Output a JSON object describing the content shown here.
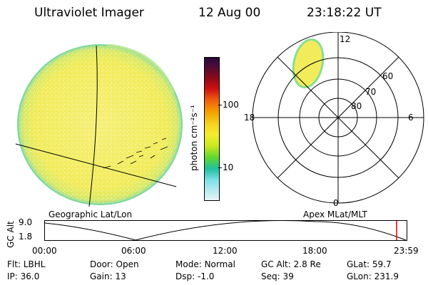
{
  "header": {
    "title": "Ultraviolet Imager",
    "date": "12 Aug 00",
    "time": "23:18:22 UT"
  },
  "colorbar": {
    "label": "photon cm⁻²s⁻¹",
    "ticks": [
      "100",
      "10"
    ]
  },
  "polar_plot": {
    "mlt_labels": [
      "12",
      "18",
      "6",
      "0"
    ],
    "lat_labels": [
      "60",
      "70",
      "80"
    ]
  },
  "globe": {
    "label": "Geographic Lat/Lon"
  },
  "polar_caption": "Apex MLat/MLT",
  "timeline": {
    "axis_label": "GC Alt",
    "y_ticks": [
      "9.0",
      "1.8"
    ],
    "x_ticks": [
      "00:00",
      "06:00",
      "12:00",
      "18:00",
      "23:59"
    ]
  },
  "info": {
    "row1": [
      {
        "label": "Flt:",
        "value": "LBHL"
      },
      {
        "label": "Door:",
        "value": "Open"
      },
      {
        "label": "Mode:",
        "value": "Normal"
      },
      {
        "label": "GC Alt:",
        "value": "2.8 Re"
      },
      {
        "label": "GLat:",
        "value": "59.7"
      }
    ],
    "row2": [
      {
        "label": "IP:",
        "value": "36.0"
      },
      {
        "label": "Gain:",
        "value": "13"
      },
      {
        "label": "Dsp:",
        "value": "-1.0"
      },
      {
        "label": "Seq:",
        "value": "39"
      },
      {
        "label": "GLon:",
        "value": "231.9"
      }
    ]
  }
}
